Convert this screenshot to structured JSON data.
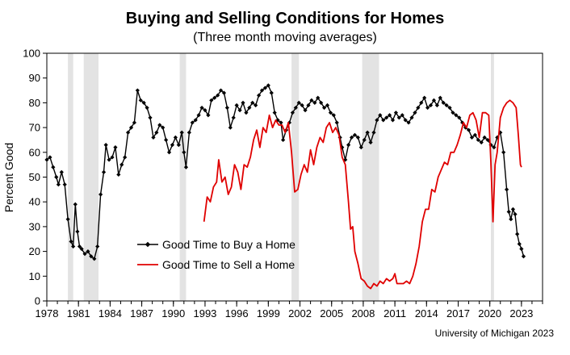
{
  "chart_data": {
    "type": "line",
    "title": "Buying and Selling Conditions for Homes",
    "subtitle": "(Three month moving averages)",
    "ylabel": "Percent Good",
    "xlabel": "",
    "source": "University of Michigan 2023",
    "xlim": [
      1978,
      2025
    ],
    "ylim": [
      0,
      100
    ],
    "yticks": [
      0,
      10,
      20,
      30,
      40,
      50,
      60,
      70,
      80,
      90,
      100
    ],
    "xticks": [
      1978,
      1981,
      1984,
      1987,
      1990,
      1993,
      1996,
      1999,
      2002,
      2005,
      2008,
      2011,
      2014,
      2017,
      2020,
      2023
    ],
    "recessions": [
      [
        1980.0,
        1980.5
      ],
      [
        1981.5,
        1982.9
      ],
      [
        1990.6,
        1991.2
      ],
      [
        2001.2,
        2001.9
      ],
      [
        2007.9,
        2009.5
      ],
      [
        2020.1,
        2020.4
      ]
    ],
    "legend_position": "lower-left",
    "series": [
      {
        "name": "Good Time to Buy a Home",
        "color": "#000000",
        "marker": "diamond",
        "points": [
          [
            1978.0,
            57
          ],
          [
            1978.3,
            58
          ],
          [
            1978.6,
            54
          ],
          [
            1978.9,
            50
          ],
          [
            1979.1,
            47
          ],
          [
            1979.4,
            52
          ],
          [
            1979.7,
            47
          ],
          [
            1980.0,
            33
          ],
          [
            1980.3,
            24
          ],
          [
            1980.5,
            22
          ],
          [
            1980.7,
            39
          ],
          [
            1980.9,
            28
          ],
          [
            1981.1,
            22
          ],
          [
            1981.3,
            21
          ],
          [
            1981.6,
            19
          ],
          [
            1981.9,
            20
          ],
          [
            1982.2,
            18
          ],
          [
            1982.5,
            17
          ],
          [
            1982.8,
            22
          ],
          [
            1983.1,
            43
          ],
          [
            1983.4,
            52
          ],
          [
            1983.6,
            63
          ],
          [
            1983.9,
            57
          ],
          [
            1984.2,
            58
          ],
          [
            1984.5,
            62
          ],
          [
            1984.8,
            51
          ],
          [
            1985.1,
            55
          ],
          [
            1985.4,
            58
          ],
          [
            1985.7,
            68
          ],
          [
            1986.0,
            70
          ],
          [
            1986.3,
            72
          ],
          [
            1986.6,
            85
          ],
          [
            1986.9,
            81
          ],
          [
            1987.2,
            80
          ],
          [
            1987.5,
            78
          ],
          [
            1987.8,
            74
          ],
          [
            1988.1,
            66
          ],
          [
            1988.4,
            68
          ],
          [
            1988.7,
            71
          ],
          [
            1989.0,
            70
          ],
          [
            1989.3,
            65
          ],
          [
            1989.6,
            60
          ],
          [
            1989.9,
            63
          ],
          [
            1990.2,
            66
          ],
          [
            1990.5,
            63
          ],
          [
            1990.8,
            68
          ],
          [
            1991.0,
            60
          ],
          [
            1991.2,
            54
          ],
          [
            1991.5,
            68
          ],
          [
            1991.8,
            72
          ],
          [
            1992.1,
            73
          ],
          [
            1992.4,
            75
          ],
          [
            1992.7,
            78
          ],
          [
            1993.0,
            77
          ],
          [
            1993.3,
            75
          ],
          [
            1993.6,
            81
          ],
          [
            1993.9,
            82
          ],
          [
            1994.2,
            83
          ],
          [
            1994.5,
            85
          ],
          [
            1994.8,
            84
          ],
          [
            1995.1,
            78
          ],
          [
            1995.4,
            70
          ],
          [
            1995.7,
            74
          ],
          [
            1996.0,
            79
          ],
          [
            1996.3,
            77
          ],
          [
            1996.6,
            80
          ],
          [
            1996.9,
            76
          ],
          [
            1997.2,
            78
          ],
          [
            1997.5,
            80
          ],
          [
            1997.8,
            79
          ],
          [
            1998.1,
            83
          ],
          [
            1998.4,
            85
          ],
          [
            1998.7,
            86
          ],
          [
            1999.0,
            87
          ],
          [
            1999.3,
            84
          ],
          [
            1999.6,
            76
          ],
          [
            1999.9,
            73
          ],
          [
            2000.2,
            72
          ],
          [
            2000.4,
            65
          ],
          [
            2000.7,
            69
          ],
          [
            2001.0,
            72
          ],
          [
            2001.3,
            76
          ],
          [
            2001.6,
            78
          ],
          [
            2001.9,
            80
          ],
          [
            2002.2,
            79
          ],
          [
            2002.5,
            77
          ],
          [
            2002.8,
            79
          ],
          [
            2003.1,
            81
          ],
          [
            2003.4,
            80
          ],
          [
            2003.7,
            82
          ],
          [
            2004.0,
            80
          ],
          [
            2004.3,
            78
          ],
          [
            2004.6,
            79
          ],
          [
            2004.9,
            76
          ],
          [
            2005.2,
            75
          ],
          [
            2005.5,
            72
          ],
          [
            2005.8,
            66
          ],
          [
            2006.0,
            62
          ],
          [
            2006.3,
            57
          ],
          [
            2006.6,
            63
          ],
          [
            2006.9,
            66
          ],
          [
            2007.2,
            67
          ],
          [
            2007.5,
            66
          ],
          [
            2007.8,
            62
          ],
          [
            2008.1,
            65
          ],
          [
            2008.4,
            68
          ],
          [
            2008.7,
            64
          ],
          [
            2009.0,
            68
          ],
          [
            2009.3,
            73
          ],
          [
            2009.6,
            75
          ],
          [
            2009.9,
            73
          ],
          [
            2010.2,
            74
          ],
          [
            2010.5,
            75
          ],
          [
            2010.8,
            73
          ],
          [
            2011.1,
            76
          ],
          [
            2011.4,
            74
          ],
          [
            2011.7,
            75
          ],
          [
            2012.0,
            73
          ],
          [
            2012.3,
            72
          ],
          [
            2012.6,
            74
          ],
          [
            2012.9,
            76
          ],
          [
            2013.2,
            78
          ],
          [
            2013.5,
            80
          ],
          [
            2013.8,
            82
          ],
          [
            2014.1,
            78
          ],
          [
            2014.4,
            79
          ],
          [
            2014.7,
            81
          ],
          [
            2015.0,
            79
          ],
          [
            2015.3,
            82
          ],
          [
            2015.6,
            80
          ],
          [
            2015.9,
            79
          ],
          [
            2016.2,
            78
          ],
          [
            2016.5,
            76
          ],
          [
            2016.8,
            75
          ],
          [
            2017.1,
            74
          ],
          [
            2017.4,
            72
          ],
          [
            2017.7,
            70
          ],
          [
            2018.0,
            69
          ],
          [
            2018.3,
            66
          ],
          [
            2018.6,
            67
          ],
          [
            2018.9,
            65
          ],
          [
            2019.2,
            64
          ],
          [
            2019.5,
            66
          ],
          [
            2019.8,
            65
          ],
          [
            2020.1,
            63
          ],
          [
            2020.4,
            62
          ],
          [
            2020.7,
            66
          ],
          [
            2021.0,
            68
          ],
          [
            2021.3,
            60
          ],
          [
            2021.6,
            45
          ],
          [
            2021.8,
            36
          ],
          [
            2022.0,
            33
          ],
          [
            2022.2,
            37
          ],
          [
            2022.4,
            35
          ],
          [
            2022.6,
            27
          ],
          [
            2022.8,
            23
          ],
          [
            2023.0,
            21
          ],
          [
            2023.2,
            18
          ]
        ]
      },
      {
        "name": "Good Time to Sell a Home",
        "color": "#e00000",
        "marker": "none",
        "points": [
          [
            1992.9,
            32
          ],
          [
            1993.2,
            42
          ],
          [
            1993.5,
            40
          ],
          [
            1993.8,
            46
          ],
          [
            1994.1,
            48
          ],
          [
            1994.3,
            57
          ],
          [
            1994.6,
            48
          ],
          [
            1994.9,
            50
          ],
          [
            1995.2,
            43
          ],
          [
            1995.5,
            46
          ],
          [
            1995.8,
            55
          ],
          [
            1996.1,
            52
          ],
          [
            1996.4,
            45
          ],
          [
            1996.7,
            55
          ],
          [
            1997.0,
            54
          ],
          [
            1997.3,
            58
          ],
          [
            1997.6,
            65
          ],
          [
            1997.9,
            69
          ],
          [
            1998.2,
            62
          ],
          [
            1998.5,
            70
          ],
          [
            1998.8,
            68
          ],
          [
            1999.1,
            75
          ],
          [
            1999.4,
            70
          ],
          [
            1999.7,
            73
          ],
          [
            2000.0,
            71
          ],
          [
            2000.3,
            71
          ],
          [
            2000.6,
            68
          ],
          [
            2000.9,
            72
          ],
          [
            2001.2,
            60
          ],
          [
            2001.5,
            44
          ],
          [
            2001.8,
            45
          ],
          [
            2002.1,
            51
          ],
          [
            2002.4,
            55
          ],
          [
            2002.7,
            52
          ],
          [
            2003.0,
            61
          ],
          [
            2003.3,
            55
          ],
          [
            2003.6,
            62
          ],
          [
            2003.9,
            66
          ],
          [
            2004.2,
            64
          ],
          [
            2004.5,
            70
          ],
          [
            2004.8,
            72
          ],
          [
            2005.1,
            68
          ],
          [
            2005.4,
            70
          ],
          [
            2005.7,
            67
          ],
          [
            2006.0,
            58
          ],
          [
            2006.3,
            55
          ],
          [
            2006.6,
            40
          ],
          [
            2006.8,
            29
          ],
          [
            2007.0,
            30
          ],
          [
            2007.2,
            20
          ],
          [
            2007.5,
            15
          ],
          [
            2007.8,
            9
          ],
          [
            2008.1,
            8
          ],
          [
            2008.4,
            6
          ],
          [
            2008.7,
            5
          ],
          [
            2009.0,
            7
          ],
          [
            2009.3,
            6
          ],
          [
            2009.6,
            8
          ],
          [
            2009.9,
            7
          ],
          [
            2010.2,
            9
          ],
          [
            2010.5,
            8
          ],
          [
            2010.8,
            9
          ],
          [
            2011.0,
            11
          ],
          [
            2011.2,
            7
          ],
          [
            2011.5,
            7
          ],
          [
            2011.8,
            7
          ],
          [
            2012.1,
            8
          ],
          [
            2012.4,
            7
          ],
          [
            2012.7,
            10
          ],
          [
            2013.0,
            15
          ],
          [
            2013.3,
            22
          ],
          [
            2013.6,
            32
          ],
          [
            2013.9,
            37
          ],
          [
            2014.2,
            37
          ],
          [
            2014.5,
            45
          ],
          [
            2014.8,
            44
          ],
          [
            2015.1,
            50
          ],
          [
            2015.4,
            53
          ],
          [
            2015.7,
            56
          ],
          [
            2016.0,
            55
          ],
          [
            2016.3,
            60
          ],
          [
            2016.6,
            60
          ],
          [
            2016.9,
            63
          ],
          [
            2017.2,
            67
          ],
          [
            2017.5,
            72
          ],
          [
            2017.8,
            70
          ],
          [
            2018.1,
            75
          ],
          [
            2018.4,
            76
          ],
          [
            2018.7,
            73
          ],
          [
            2019.0,
            66
          ],
          [
            2019.3,
            76
          ],
          [
            2019.6,
            76
          ],
          [
            2019.9,
            75
          ],
          [
            2020.1,
            56
          ],
          [
            2020.3,
            32
          ],
          [
            2020.5,
            55
          ],
          [
            2020.7,
            60
          ],
          [
            2021.0,
            74
          ],
          [
            2021.3,
            78
          ],
          [
            2021.6,
            80
          ],
          [
            2021.9,
            81
          ],
          [
            2022.2,
            80
          ],
          [
            2022.5,
            78
          ],
          [
            2022.7,
            67
          ],
          [
            2022.9,
            55
          ],
          [
            2023.0,
            54
          ]
        ]
      }
    ]
  }
}
